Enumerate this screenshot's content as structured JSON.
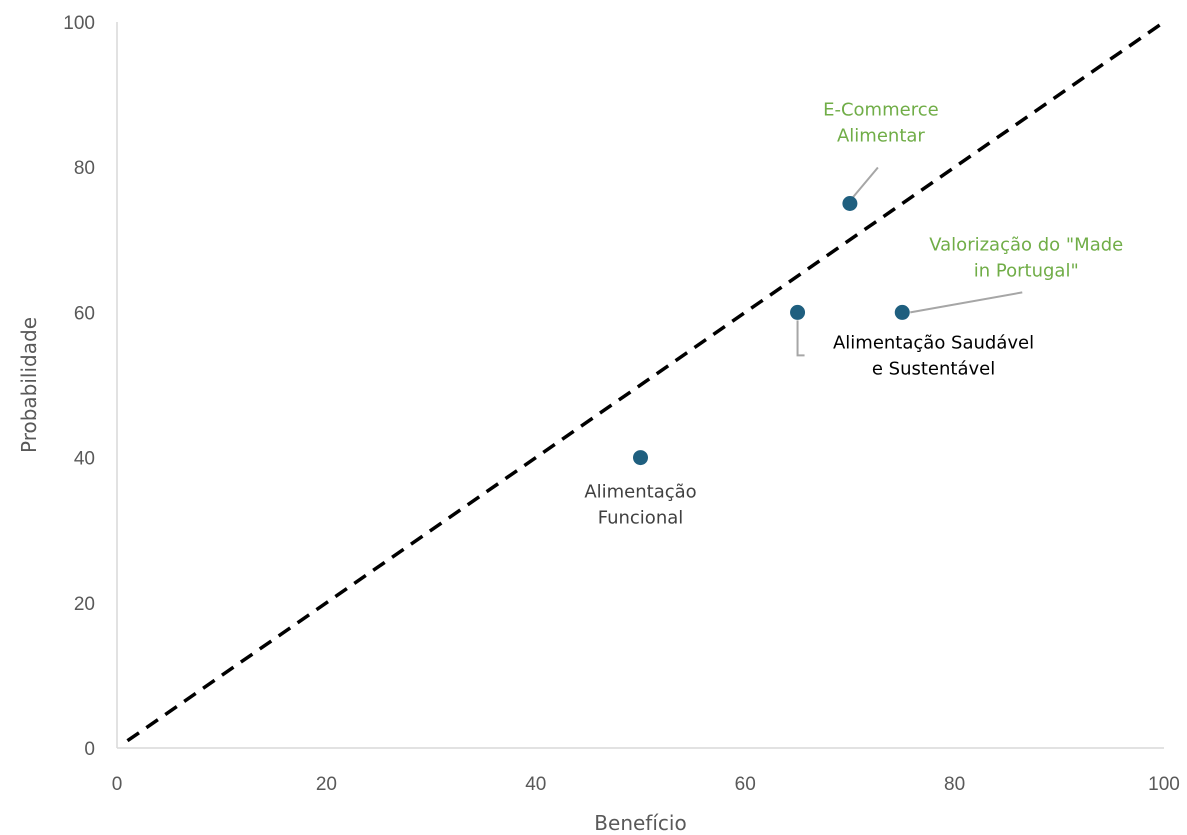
{
  "chart_data": {
    "type": "scatter",
    "title": "",
    "xlabel": "Benefício",
    "ylabel": "Probabilidade",
    "xlim": [
      0,
      100
    ],
    "ylim": [
      0,
      100
    ],
    "x_ticks": [
      "0",
      "20",
      "40",
      "60",
      "80",
      "100"
    ],
    "y_ticks": [
      "0",
      "20",
      "40",
      "60",
      "80",
      "100"
    ],
    "grid": false,
    "legend": "none",
    "marker_color": "#1f5f7f",
    "reference_line": {
      "style": "dashed",
      "color": "#000000",
      "from": [
        1,
        1
      ],
      "to": [
        100,
        100
      ]
    },
    "points": [
      {
        "x": 70,
        "y": 75,
        "label": [
          "E-Commerce",
          "Alimentar"
        ],
        "label_color": "#70ad47"
      },
      {
        "x": 75,
        "y": 60,
        "label": [
          "Valorização do \"Made",
          "in Portugal\""
        ],
        "label_color": "#70ad47"
      },
      {
        "x": 65,
        "y": 60,
        "label": [
          "Alimentação Saudável",
          "e Sustentável"
        ],
        "label_color": "#000000"
      },
      {
        "x": 50,
        "y": 40,
        "label": [
          "Alimentação",
          "Funcional"
        ],
        "label_color": "#404040"
      }
    ]
  }
}
